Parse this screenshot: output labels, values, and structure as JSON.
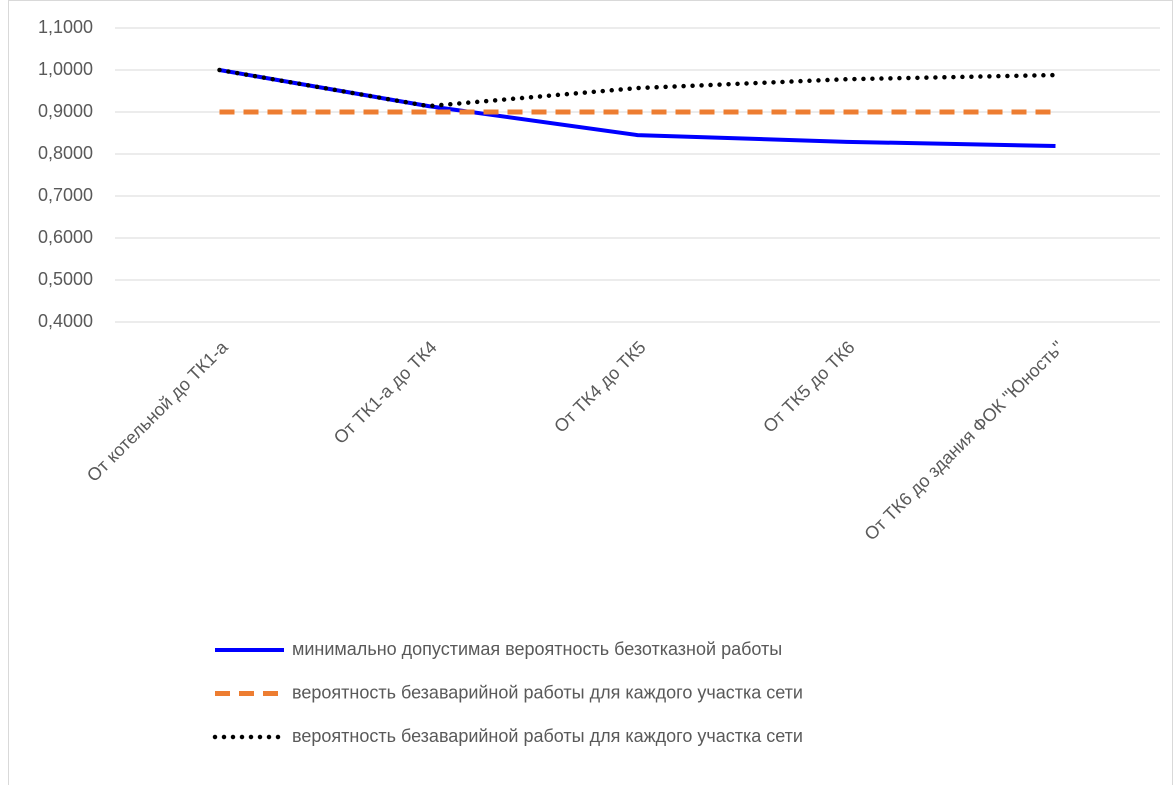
{
  "chart_data": {
    "type": "line",
    "categories": [
      "От котельной до ТК1-а",
      "От ТК1-а до ТК4",
      "От ТК4 до ТК5",
      "От ТК5 до ТК6",
      "От ТК6 до здания ФОК \"Юность\""
    ],
    "series": [
      {
        "name": "минимально допустимая вероятность безотказной работы",
        "color": "#0000ff",
        "style": "solid",
        "values": [
          1.0,
          0.914,
          0.845,
          0.829,
          0.819
        ]
      },
      {
        "name": "вероятность безаварийной работы для каждого участка сети",
        "color": "#ed7d31",
        "style": "dashed",
        "values": [
          0.9,
          0.9,
          0.9,
          0.9,
          0.9
        ]
      },
      {
        "name": "вероятность безаварийной работы для каждого участка сети",
        "color": "#000000",
        "style": "dotted",
        "values": [
          1.0,
          0.914,
          0.957,
          0.978,
          0.988
        ]
      }
    ],
    "ylim": [
      0.4,
      1.1
    ],
    "yticks": [
      {
        "value": 0.4,
        "label": "0,4000"
      },
      {
        "value": 0.5,
        "label": "0,5000"
      },
      {
        "value": 0.6,
        "label": "0,6000"
      },
      {
        "value": 0.7,
        "label": "0,7000"
      },
      {
        "value": 0.8,
        "label": "0,8000"
      },
      {
        "value": 0.9,
        "label": "0,9000"
      },
      {
        "value": 1.0,
        "label": "1,0000"
      },
      {
        "value": 1.1,
        "label": "1,1000"
      }
    ],
    "grid": true,
    "legend": "bottom"
  }
}
